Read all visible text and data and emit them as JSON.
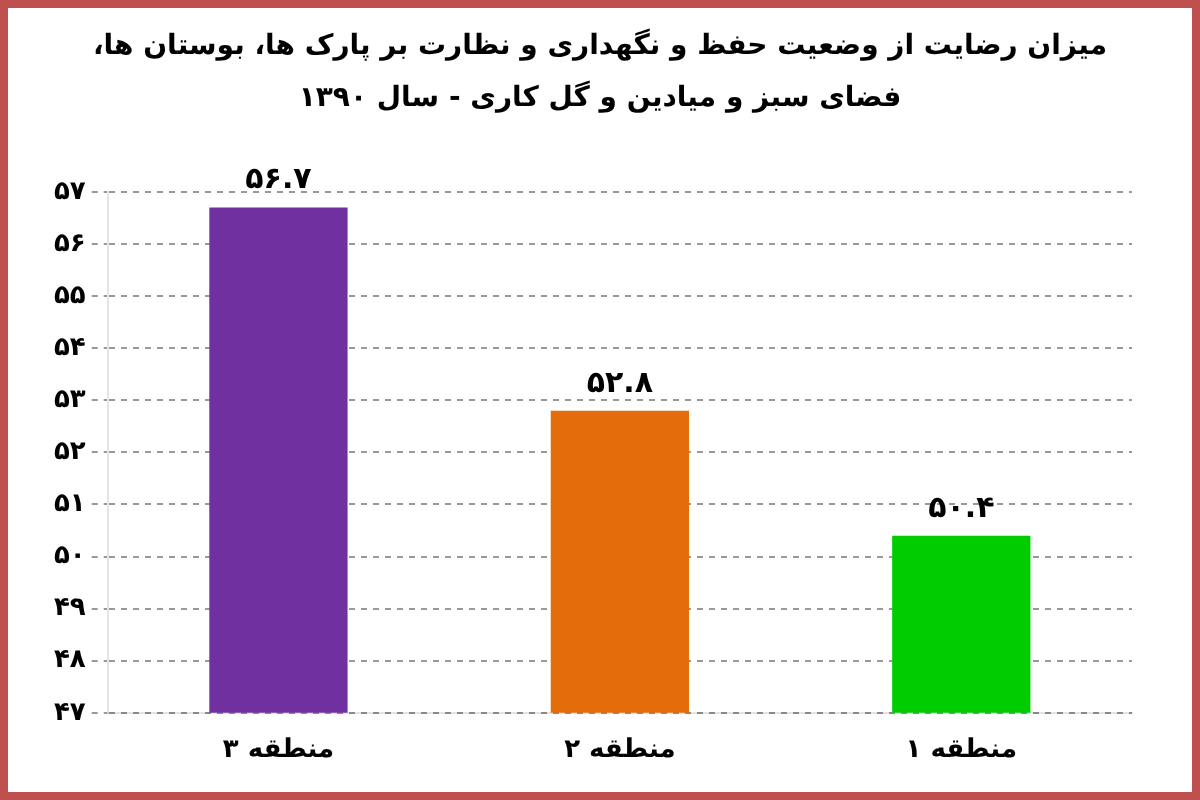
{
  "chart_data": {
    "type": "bar",
    "title": "میزان رضایت از وضعیت حفظ و نگهداری و نظارت بر پارک ها، بوستان ها، فضای سبز و میادین و گل کاری - سال ۱۳۹۰",
    "categories": [
      "منطقه ۳",
      "منطقه ۲",
      "منطقه ۱"
    ],
    "values": [
      56.7,
      52.8,
      50.4
    ],
    "colors": [
      "#7030a0",
      "#e46c0a",
      "#00cc00"
    ],
    "value_labels": [
      "۵۶.۷",
      "۵۲.۸",
      "۵۰.۴"
    ],
    "ylim": [
      47,
      57
    ],
    "yticks": [
      {
        "value": 47,
        "label": "۴۷"
      },
      {
        "value": 48,
        "label": "۴۸"
      },
      {
        "value": 49,
        "label": "۴۹"
      },
      {
        "value": 50,
        "label": "۵۰"
      },
      {
        "value": 51,
        "label": "۵۱"
      },
      {
        "value": 52,
        "label": "۵۲"
      },
      {
        "value": 53,
        "label": "۵۳"
      },
      {
        "value": 54,
        "label": "۵۴"
      },
      {
        "value": 55,
        "label": "۵۵"
      },
      {
        "value": 56,
        "label": "۵۶"
      },
      {
        "value": 57,
        "label": "۵۷"
      }
    ],
    "grid": "y",
    "legend": false
  }
}
